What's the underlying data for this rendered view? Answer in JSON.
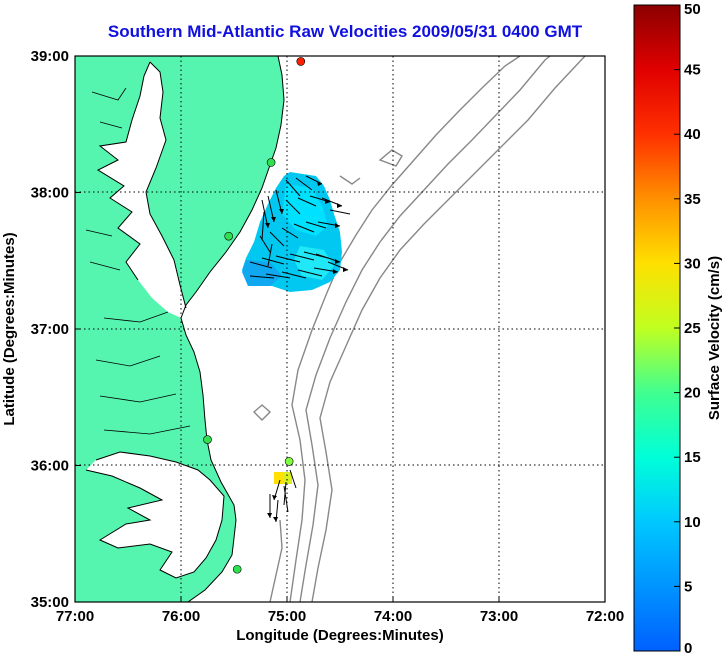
{
  "title": "Southern Mid-Atlantic Raw Velocities 2009/05/31 0400 GMT",
  "axes": {
    "xlabel": "Longitude (Degrees:Minutes)",
    "ylabel": "Latitude (Degrees:Minutes)",
    "x_ticks": [
      "77:00",
      "76:00",
      "75:00",
      "74:00",
      "73:00",
      "72:00"
    ],
    "y_ticks": [
      "39:00",
      "38:00",
      "37:00",
      "36:00",
      "35:00"
    ],
    "x_range": [
      -77,
      -72
    ],
    "y_range": [
      35,
      39
    ]
  },
  "colorbar": {
    "label": "Surface Velocity (cm/s)",
    "ticks": [
      "50",
      "45",
      "40",
      "35",
      "30",
      "25",
      "20",
      "15",
      "10",
      "5",
      "0"
    ],
    "range": [
      0,
      50
    ]
  },
  "colors": {
    "land": "#55f5b0",
    "title": "#1010e0",
    "bathymetry": "#888888",
    "coastline": "#000000"
  },
  "stations": [
    {
      "lon": -74.87,
      "lat": 38.96,
      "color": "#ff2000"
    },
    {
      "lon": -75.15,
      "lat": 38.22,
      "color": "#30e050"
    },
    {
      "lon": -75.55,
      "lat": 37.68,
      "color": "#30e050"
    },
    {
      "lon": -75.75,
      "lat": 36.19,
      "color": "#30e050"
    },
    {
      "lon": -75.47,
      "lat": 35.24,
      "color": "#30e050"
    },
    {
      "lon": -74.98,
      "lat": 36.03,
      "color": "#80ff40"
    }
  ]
}
